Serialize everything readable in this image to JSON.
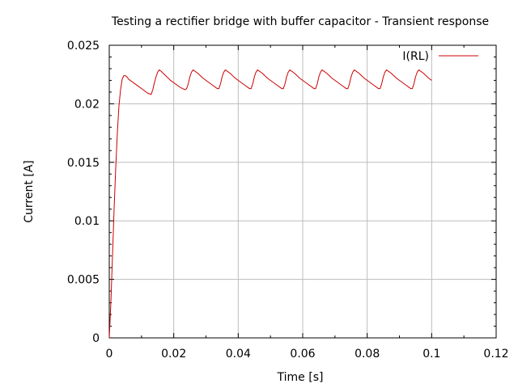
{
  "chart_data": {
    "type": "line",
    "title": "Testing a rectifier bridge with buffer capacitor - Transient response",
    "xlabel": "Time [s]",
    "ylabel": "Current [A]",
    "xlim": [
      0,
      0.12
    ],
    "ylim": [
      0,
      0.025
    ],
    "x_ticks": [
      "0",
      "0.02",
      "0.04",
      "0.06",
      "0.08",
      "0.1",
      "0.12"
    ],
    "y_ticks": [
      "0",
      "0.005",
      "0.01",
      "0.015",
      "0.02",
      "0.025"
    ],
    "grid": true,
    "legend_position": "top-right",
    "series": [
      {
        "name": "I(RL)",
        "color": "#cc0000",
        "x": [
          0,
          0.0005,
          0.001,
          0.0015,
          0.002,
          0.0025,
          0.003,
          0.0035,
          0.004,
          0.0045,
          0.005,
          0.0055,
          0.006,
          0.0075,
          0.009,
          0.0105,
          0.012,
          0.013,
          0.0135,
          0.014,
          0.0145,
          0.015,
          0.0155,
          0.016,
          0.0175,
          0.019,
          0.0205,
          0.022,
          0.0235,
          0.024,
          0.0245,
          0.025,
          0.0255,
          0.026,
          0.0275,
          0.029,
          0.0305,
          0.032,
          0.0335,
          0.034,
          0.0345,
          0.035,
          0.0355,
          0.036,
          0.0375,
          0.039,
          0.0405,
          0.042,
          0.0435,
          0.044,
          0.0445,
          0.045,
          0.0455,
          0.046,
          0.0475,
          0.049,
          0.0505,
          0.052,
          0.0535,
          0.054,
          0.0545,
          0.055,
          0.0555,
          0.056,
          0.0575,
          0.059,
          0.0605,
          0.062,
          0.0635,
          0.064,
          0.0645,
          0.065,
          0.0655,
          0.066,
          0.0675,
          0.069,
          0.0705,
          0.072,
          0.0735,
          0.074,
          0.0745,
          0.075,
          0.0755,
          0.076,
          0.0775,
          0.079,
          0.0805,
          0.082,
          0.0835,
          0.084,
          0.0845,
          0.085,
          0.0855,
          0.086,
          0.0875,
          0.089,
          0.0905,
          0.092,
          0.0935,
          0.094,
          0.0945,
          0.095,
          0.0955,
          0.096,
          0.0975,
          0.099,
          0.1
        ],
        "values": [
          0,
          0.003,
          0.007,
          0.011,
          0.0145,
          0.0175,
          0.0198,
          0.0212,
          0.0221,
          0.0224,
          0.0224,
          0.0223,
          0.0221,
          0.0218,
          0.0215,
          0.0212,
          0.0209,
          0.0208,
          0.0212,
          0.0218,
          0.0223,
          0.0227,
          0.0229,
          0.0228,
          0.0224,
          0.022,
          0.0217,
          0.0214,
          0.0212,
          0.0213,
          0.0217,
          0.0223,
          0.0227,
          0.0229,
          0.0226,
          0.0222,
          0.0219,
          0.0216,
          0.0213,
          0.0213,
          0.0217,
          0.0223,
          0.0227,
          0.0229,
          0.0226,
          0.0222,
          0.0219,
          0.0216,
          0.0213,
          0.0213,
          0.0217,
          0.0223,
          0.0227,
          0.0229,
          0.0226,
          0.0222,
          0.0219,
          0.0216,
          0.0213,
          0.0213,
          0.0217,
          0.0223,
          0.0227,
          0.0229,
          0.0226,
          0.0222,
          0.0219,
          0.0216,
          0.0213,
          0.0213,
          0.0217,
          0.0223,
          0.0227,
          0.0229,
          0.0226,
          0.0222,
          0.0219,
          0.0216,
          0.0213,
          0.0213,
          0.0217,
          0.0223,
          0.0227,
          0.0229,
          0.0226,
          0.0222,
          0.0219,
          0.0216,
          0.0213,
          0.0213,
          0.0217,
          0.0223,
          0.0227,
          0.0229,
          0.0226,
          0.0222,
          0.0219,
          0.0216,
          0.0213,
          0.0213,
          0.0217,
          0.0223,
          0.0227,
          0.0229,
          0.0226,
          0.0222,
          0.022
        ]
      }
    ]
  }
}
